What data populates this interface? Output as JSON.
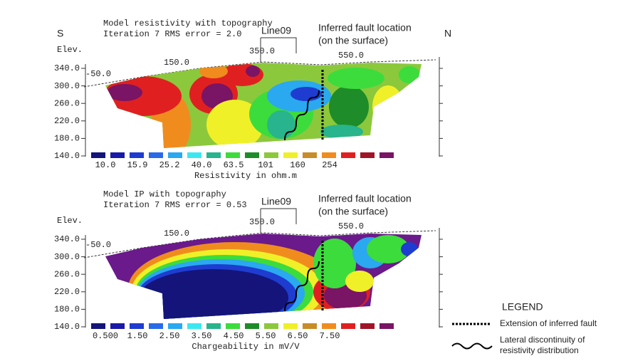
{
  "panels": [
    {
      "direction_left": "S",
      "direction_right": "N",
      "title": [
        "Model resistivity with topography",
        "Iteration 7 RMS error = 2.0"
      ],
      "line_label": "Line09",
      "fault_label": [
        "Inferred fault location",
        "(on the surface)"
      ],
      "elevation_label": "Elev.",
      "y_ticks": [
        "340.0",
        "300.0",
        "260.0",
        "220.0",
        "180.0",
        "140.0"
      ],
      "x_ticks": [
        "-50.0",
        "150.0",
        "350.0",
        "550.0"
      ],
      "scale_labels": [
        "10.0",
        "15.9",
        "25.2",
        "40.0",
        "63.5",
        "101",
        "160",
        "254"
      ],
      "scale_title": "Resistivity in ohm.m"
    },
    {
      "title": [
        "Model IP with topography",
        "Iteration 7 RMS error = 0.53"
      ],
      "line_label": "Line09",
      "fault_label": [
        "Inferred fault location",
        "(on the surface)"
      ],
      "elevation_label": "Elev.",
      "y_ticks": [
        "340.0",
        "300.0",
        "260.0",
        "220.0",
        "180.0",
        "140.0"
      ],
      "x_ticks": [
        "-50.0",
        "150.0",
        "350.0",
        "550.0"
      ],
      "scale_labels": [
        "0.500",
        "1.50",
        "2.50",
        "3.50",
        "4.50",
        "5.50",
        "6.50",
        "7.50"
      ],
      "scale_title": "Chargeability in mV/V"
    }
  ],
  "legend": {
    "title": "LEGEND",
    "items": [
      [
        "Extension of inferred fault"
      ],
      [
        "Lateral discontinuity of",
        "resistivity distribution"
      ]
    ]
  }
}
